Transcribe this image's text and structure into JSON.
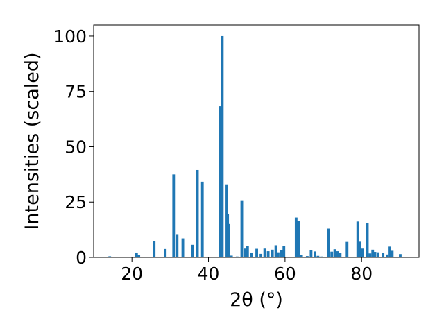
{
  "chart_data": {
    "type": "bar",
    "title": "",
    "xlabel": "2θ (°)",
    "ylabel": "Intensities (scaled)",
    "xlim": [
      10,
      95
    ],
    "ylim": [
      0,
      105
    ],
    "x_ticks": [
      20,
      40,
      60,
      80
    ],
    "y_ticks": [
      0,
      25,
      50,
      75,
      100
    ],
    "grid": false,
    "bar_width": 0.7,
    "color": "#1f77b4",
    "series": [
      {
        "x": [
          14.2,
          19.5,
          21.2,
          21.8,
          25.8,
          28.7,
          30.9,
          31.8,
          33.3,
          35.9,
          37.1,
          38.4,
          43.1,
          43.6,
          44.8,
          45.0,
          45.3,
          46.0,
          47.5,
          48.7,
          49.6,
          50.2,
          51.2,
          52.6,
          53.7,
          54.7,
          55.6,
          56.7,
          57.6,
          58.2,
          59.1,
          59.7,
          62.9,
          63.5,
          64.3,
          65.8,
          66.8,
          67.8,
          68.6,
          69.5,
          71.4,
          72.2,
          73.0,
          73.7,
          74.4,
          76.2,
          79.0,
          79.6,
          80.3,
          81.5,
          82.2,
          82.9,
          83.5,
          84.3,
          85.6,
          86.7,
          87.4,
          88.0,
          90.1
        ],
        "values": [
          0.5,
          0.3,
          2.2,
          1.1,
          7.5,
          3.8,
          37.5,
          10.2,
          8.6,
          5.7,
          39.5,
          34.2,
          68.3,
          100,
          33.0,
          19.5,
          15.1,
          0.8,
          0.4,
          25.5,
          4.0,
          5.1,
          2.2,
          3.9,
          1.6,
          4.0,
          2.8,
          3.5,
          5.5,
          2.3,
          3.3,
          5.3,
          18.0,
          16.5,
          1.2,
          0.6,
          3.3,
          2.7,
          0.7,
          0.4,
          13.0,
          2.6,
          3.7,
          2.8,
          2.0,
          7.0,
          16.2,
          7.1,
          4.0,
          15.6,
          1.8,
          3.5,
          2.5,
          2.3,
          1.9,
          1.3,
          4.9,
          3.0,
          1.5
        ]
      }
    ]
  }
}
